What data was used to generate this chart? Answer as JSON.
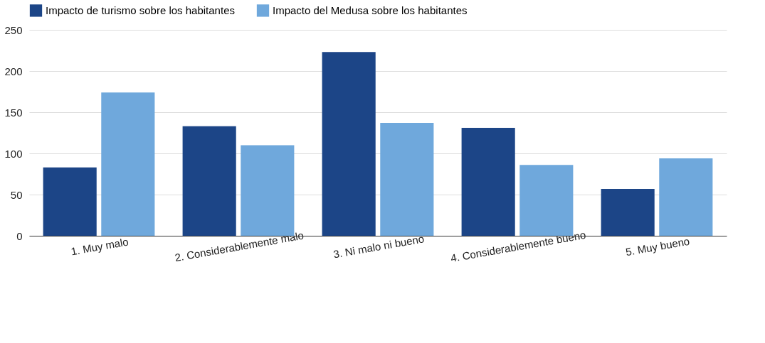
{
  "chart_data": {
    "type": "bar",
    "categories": [
      "1. Muy malo",
      "2. Considerablemente malo",
      "3. Ni malo ni bueno",
      "4.  Considerablemente bueno",
      "5. Muy bueno"
    ],
    "series": [
      {
        "name": "Impacto de turismo sobre los habitantes",
        "color": "#1c4587",
        "values": [
          83,
          133,
          223,
          131,
          57
        ]
      },
      {
        "name": "Impacto del Medusa sobre los habitantes",
        "color": "#6fa8dc",
        "values": [
          174,
          110,
          137,
          86,
          94
        ]
      }
    ],
    "ylim": [
      0,
      250
    ],
    "yticks": [
      0,
      50,
      100,
      150,
      200,
      250
    ],
    "grid": "y",
    "legend": "top"
  }
}
